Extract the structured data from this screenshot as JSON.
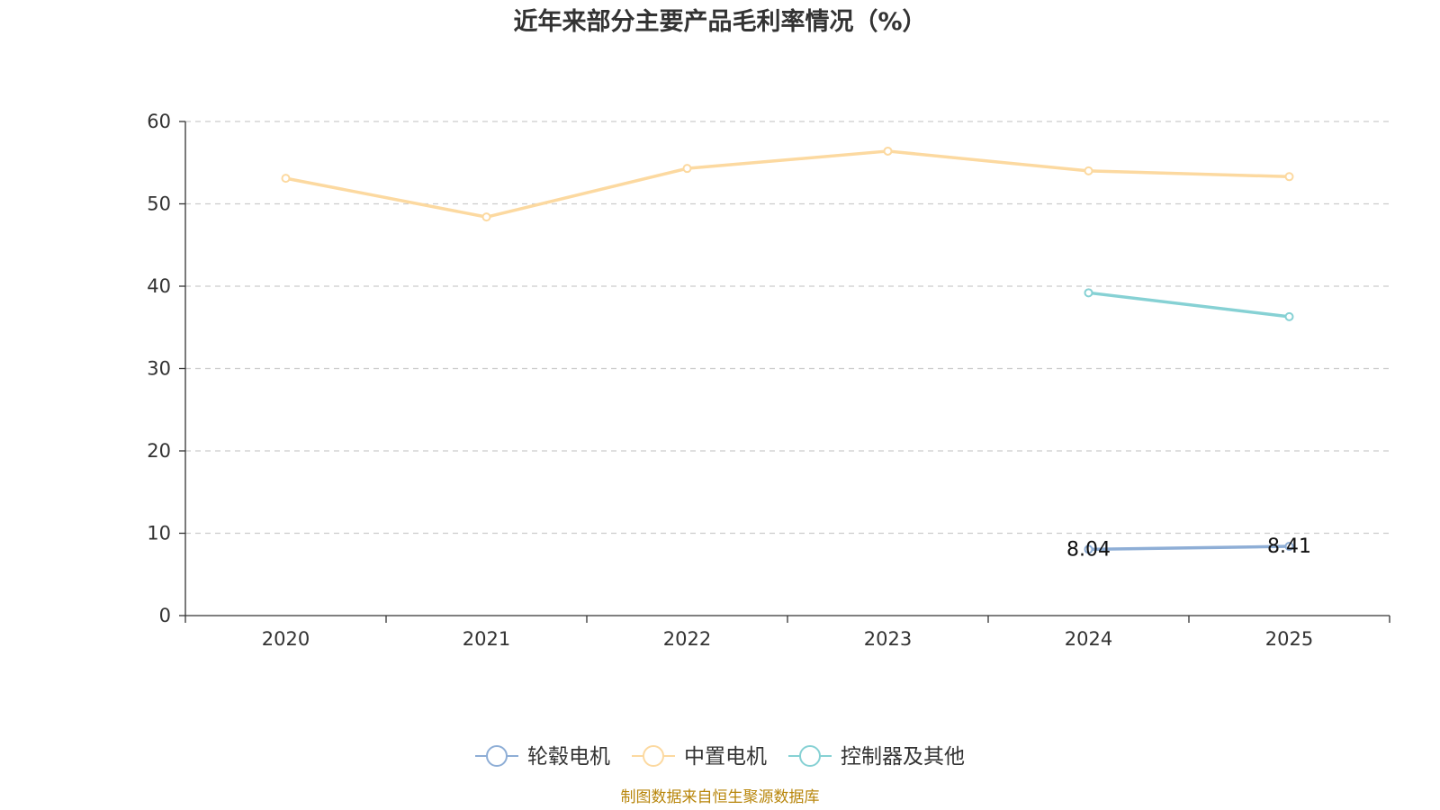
{
  "chart_data": {
    "type": "line",
    "title": "近年来部分主要产品毛利率情况（%）",
    "categories": [
      "2020",
      "2021",
      "2022",
      "2023",
      "2024",
      "2025"
    ],
    "ylim": [
      0,
      60
    ],
    "yticks": [
      0,
      10,
      20,
      30,
      40,
      50,
      60
    ],
    "grid": true,
    "legend_position": "bottom",
    "series": [
      {
        "name": "轮毂电机",
        "color": "#8eaed6",
        "values": [
          null,
          null,
          null,
          null,
          8.04,
          8.41
        ],
        "data_labels": [
          null,
          null,
          null,
          null,
          "8.04",
          "8.41"
        ]
      },
      {
        "name": "中置电机",
        "color": "#fcd9a0",
        "values": [
          53.1,
          48.4,
          54.3,
          56.4,
          54.0,
          53.3
        ],
        "data_labels": [
          null,
          null,
          null,
          null,
          null,
          null
        ]
      },
      {
        "name": "控制器及其他",
        "color": "#86d1d4",
        "values": [
          null,
          null,
          null,
          null,
          39.2,
          36.3
        ],
        "data_labels": [
          null,
          null,
          null,
          null,
          null,
          null
        ]
      }
    ]
  },
  "source": "制图数据来自恒生聚源数据库"
}
